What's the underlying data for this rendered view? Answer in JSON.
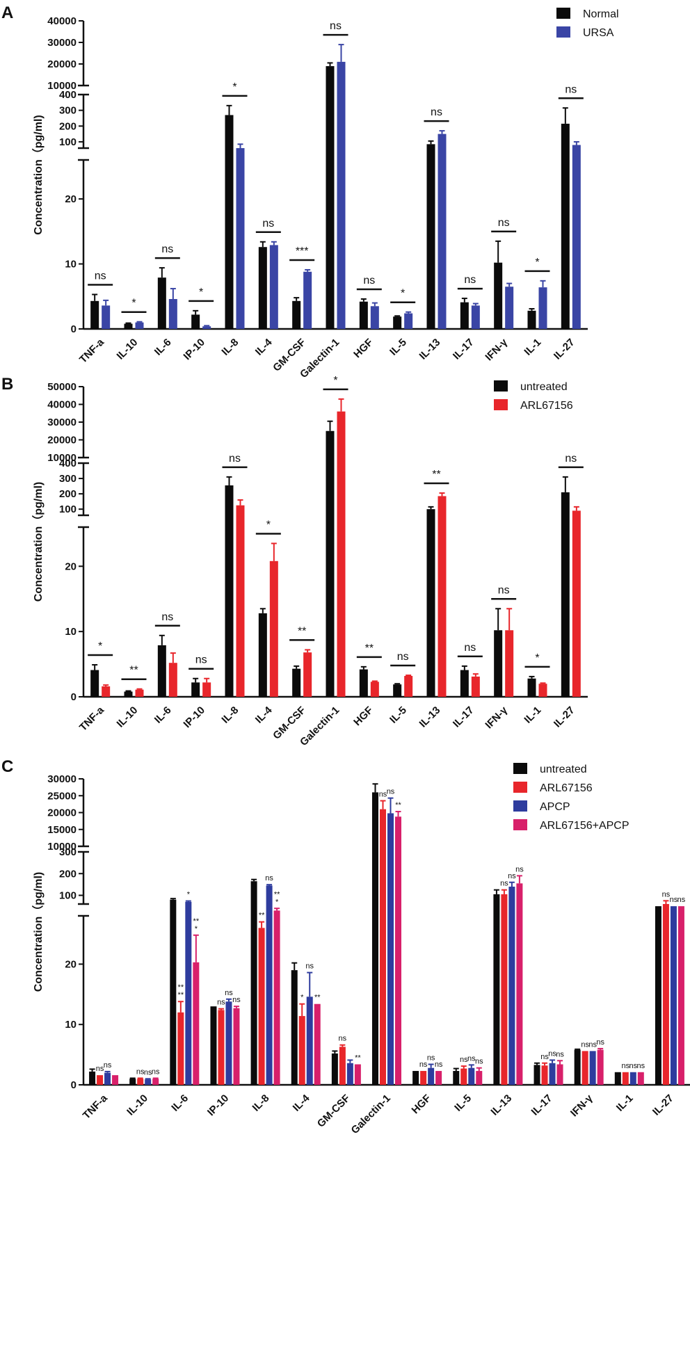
{
  "colors": {
    "normal": "#0b0b0b",
    "ursa": "#3a45a5",
    "untreated": "#0b0b0b",
    "arl": "#e8262b",
    "apcp": "#2e3c9e",
    "combo": "#d8206a"
  },
  "chart_data": [
    {
      "panel": "A",
      "type": "bar",
      "ylabel": "Concentration（pg/ml)",
      "categories": [
        "TNF-a",
        "IL-10",
        "IL-6",
        "IP-10",
        "IL-8",
        "IL-4",
        "GM-CSF",
        "Galectin-1",
        "HGF",
        "IL-5",
        "IL-13",
        "IL-17",
        "IFN-γ",
        "IL-1",
        "IL-27"
      ],
      "y_segments": {
        "low": {
          "range": [
            0,
            26
          ],
          "ticks": [
            "0",
            "10",
            "20"
          ]
        },
        "mid": {
          "range": [
            60,
            400
          ],
          "ticks": [
            "100",
            "200",
            "300",
            "400"
          ]
        },
        "high": {
          "range": [
            10000,
            40000
          ],
          "ticks": [
            "10000",
            "20000",
            "30000",
            "40000"
          ]
        }
      },
      "series": [
        {
          "name": "Normal",
          "color_key": "normal",
          "values": [
            4.3,
            0.8,
            7.9,
            2.2,
            270,
            12.6,
            4.3,
            19000,
            4.2,
            1.9,
            85,
            4.1,
            10.2,
            2.8,
            215
          ],
          "errors": [
            1.0,
            0.1,
            1.5,
            0.6,
            60,
            0.8,
            0.5,
            1500,
            0.4,
            0.1,
            20,
            0.6,
            3.3,
            0.3,
            100
          ]
        },
        {
          "name": "URSA",
          "color_key": "ursa",
          "values": [
            3.6,
            1.0,
            4.6,
            0.4,
            60,
            12.9,
            8.8,
            21000,
            3.5,
            2.4,
            150,
            3.6,
            6.5,
            6.4,
            80
          ],
          "errors": [
            0.8,
            0.1,
            1.6,
            0.1,
            25,
            0.5,
            0.3,
            8000,
            0.5,
            0.2,
            20,
            0.3,
            0.5,
            1.0,
            20
          ]
        }
      ],
      "significance": [
        "ns",
        "*",
        "ns",
        "*",
        "*",
        "ns",
        "***",
        "ns",
        "ns",
        "*",
        "ns",
        "ns",
        "ns",
        "*",
        "ns"
      ],
      "legend_position": "top-right"
    },
    {
      "panel": "B",
      "type": "bar",
      "ylabel": "Concentration（pg/ml)",
      "categories": [
        "TNF-a",
        "IL-10",
        "IL-6",
        "IP-10",
        "IL-8",
        "IL-4",
        "GM-CSF",
        "Galectin-1",
        "HGF",
        "IL-5",
        "IL-13",
        "IL-17",
        "IFN-γ",
        "IL-1",
        "IL-27"
      ],
      "y_segments": {
        "low": {
          "range": [
            0,
            26
          ],
          "ticks": [
            "0",
            "10",
            "20"
          ]
        },
        "mid": {
          "range": [
            60,
            400
          ],
          "ticks": [
            "100",
            "200",
            "300",
            "400"
          ]
        },
        "high": {
          "range": [
            10000,
            50000
          ],
          "ticks": [
            "10000",
            "20000",
            "30000",
            "40000",
            "50000"
          ]
        }
      },
      "series": [
        {
          "name": "untreated",
          "color_key": "untreated",
          "values": [
            4.1,
            0.8,
            7.9,
            2.2,
            255,
            12.8,
            4.3,
            25000,
            4.2,
            1.9,
            100,
            4.1,
            10.2,
            2.8,
            210
          ],
          "errors": [
            0.8,
            0.1,
            1.5,
            0.6,
            55,
            0.7,
            0.4,
            5500,
            0.4,
            0.1,
            15,
            0.6,
            3.3,
            0.3,
            100
          ]
        },
        {
          "name": "ARL67156",
          "color_key": "arl",
          "values": [
            1.6,
            1.1,
            5.2,
            2.2,
            125,
            20.8,
            6.8,
            36000,
            2.3,
            3.2,
            185,
            3.1,
            10.2,
            2.0,
            90
          ],
          "errors": [
            0.2,
            0.1,
            1.5,
            0.6,
            35,
            2.7,
            0.4,
            7000,
            0.1,
            0.1,
            20,
            0.4,
            3.3,
            0.1,
            25
          ]
        }
      ],
      "significance": [
        "*",
        "**",
        "ns",
        "ns",
        "ns",
        "*",
        "**",
        "*",
        "**",
        "ns",
        "**",
        "ns",
        "ns",
        "*",
        "ns"
      ],
      "legend_position": "top-right"
    },
    {
      "panel": "C",
      "type": "bar",
      "ylabel": "Concentration（pg/ml)",
      "categories": [
        "TNF-a",
        "IL-10",
        "IL-6",
        "IP-10",
        "IL-8",
        "IL-4",
        "GM-CSF",
        "Galectin-1",
        "HGF",
        "IL-5",
        "IL-13",
        "IL-17",
        "IFN-γ",
        "IL-1",
        "IL-27"
      ],
      "y_segments": {
        "low": {
          "range": [
            0,
            28
          ],
          "ticks": [
            "0",
            "10",
            "20"
          ]
        },
        "mid": {
          "range": [
            60,
            300
          ],
          "ticks": [
            "100",
            "200",
            "300"
          ]
        },
        "high": {
          "range": [
            10000,
            30000
          ],
          "ticks": [
            "10000",
            "15000",
            "20000",
            "25000",
            "30000"
          ]
        }
      },
      "series": [
        {
          "name": "untreated",
          "color_key": "untreated",
          "values": [
            2.2,
            1.0,
            80,
            13.0,
            165,
            19.0,
            5.2,
            26000,
            2.3,
            2.3,
            105,
            3.3,
            5.8,
            2.1,
            50
          ],
          "errors": [
            0.4,
            0.1,
            5,
            0,
            8,
            1.2,
            0.4,
            2500,
            0,
            0.4,
            20,
            0.3,
            0.1,
            0,
            0
          ]
        },
        {
          "name": "ARL67156",
          "color_key": "arl",
          "values": [
            1.6,
            1.0,
            12.0,
            12.4,
            26.0,
            11.4,
            6.3,
            21000,
            2.3,
            2.7,
            105,
            3.2,
            5.6,
            2.1,
            60
          ],
          "errors": [
            0,
            0.1,
            1.8,
            0.2,
            1.0,
            2.0,
            0.3,
            2500,
            0,
            0.4,
            20,
            0.4,
            0,
            0,
            15
          ]
        },
        {
          "name": "APCP",
          "color_key": "apcp",
          "values": [
            2.0,
            0.9,
            70,
            13.8,
            145,
            14.6,
            3.6,
            19800,
            2.8,
            2.8,
            140,
            3.6,
            5.6,
            2.1,
            50
          ],
          "errors": [
            0.2,
            0.1,
            4,
            0.4,
            4,
            4.0,
            0.5,
            4500,
            0.6,
            0.5,
            20,
            0.5,
            0,
            0,
            0
          ]
        },
        {
          "name": "ARL67156+APCP",
          "color_key": "combo",
          "values": [
            1.6,
            1.0,
            20.3,
            12.7,
            30,
            13.4,
            3.4,
            18800,
            2.3,
            2.3,
            155,
            3.4,
            5.8,
            2.1,
            50
          ],
          "errors": [
            0,
            0.1,
            4.5,
            0.3,
            10,
            0,
            0,
            1500,
            0,
            0.5,
            35,
            0.6,
            0.2,
            0,
            0
          ]
        }
      ],
      "significance": [
        [
          "ns",
          "ns",
          ""
        ],
        [
          "ns",
          "ns",
          "ns"
        ],
        [
          "**\n**",
          "*",
          "**\n*"
        ],
        [
          "ns",
          "ns",
          "ns"
        ],
        [
          "**",
          "ns",
          "**\n*"
        ],
        [
          "*",
          "ns",
          "**"
        ],
        [
          "ns",
          "",
          "**"
        ],
        [
          "ns",
          "ns",
          "**"
        ],
        [
          "ns",
          "ns",
          "ns"
        ],
        [
          "ns",
          "ns",
          "ns"
        ],
        [
          "ns",
          "ns",
          "ns"
        ],
        [
          "ns",
          "ns",
          "ns"
        ],
        [
          "ns",
          "ns",
          "ns"
        ],
        [
          "ns",
          "ns",
          "ns"
        ],
        [
          "ns",
          "ns",
          "ns"
        ]
      ],
      "legend_position": "top-right"
    }
  ]
}
